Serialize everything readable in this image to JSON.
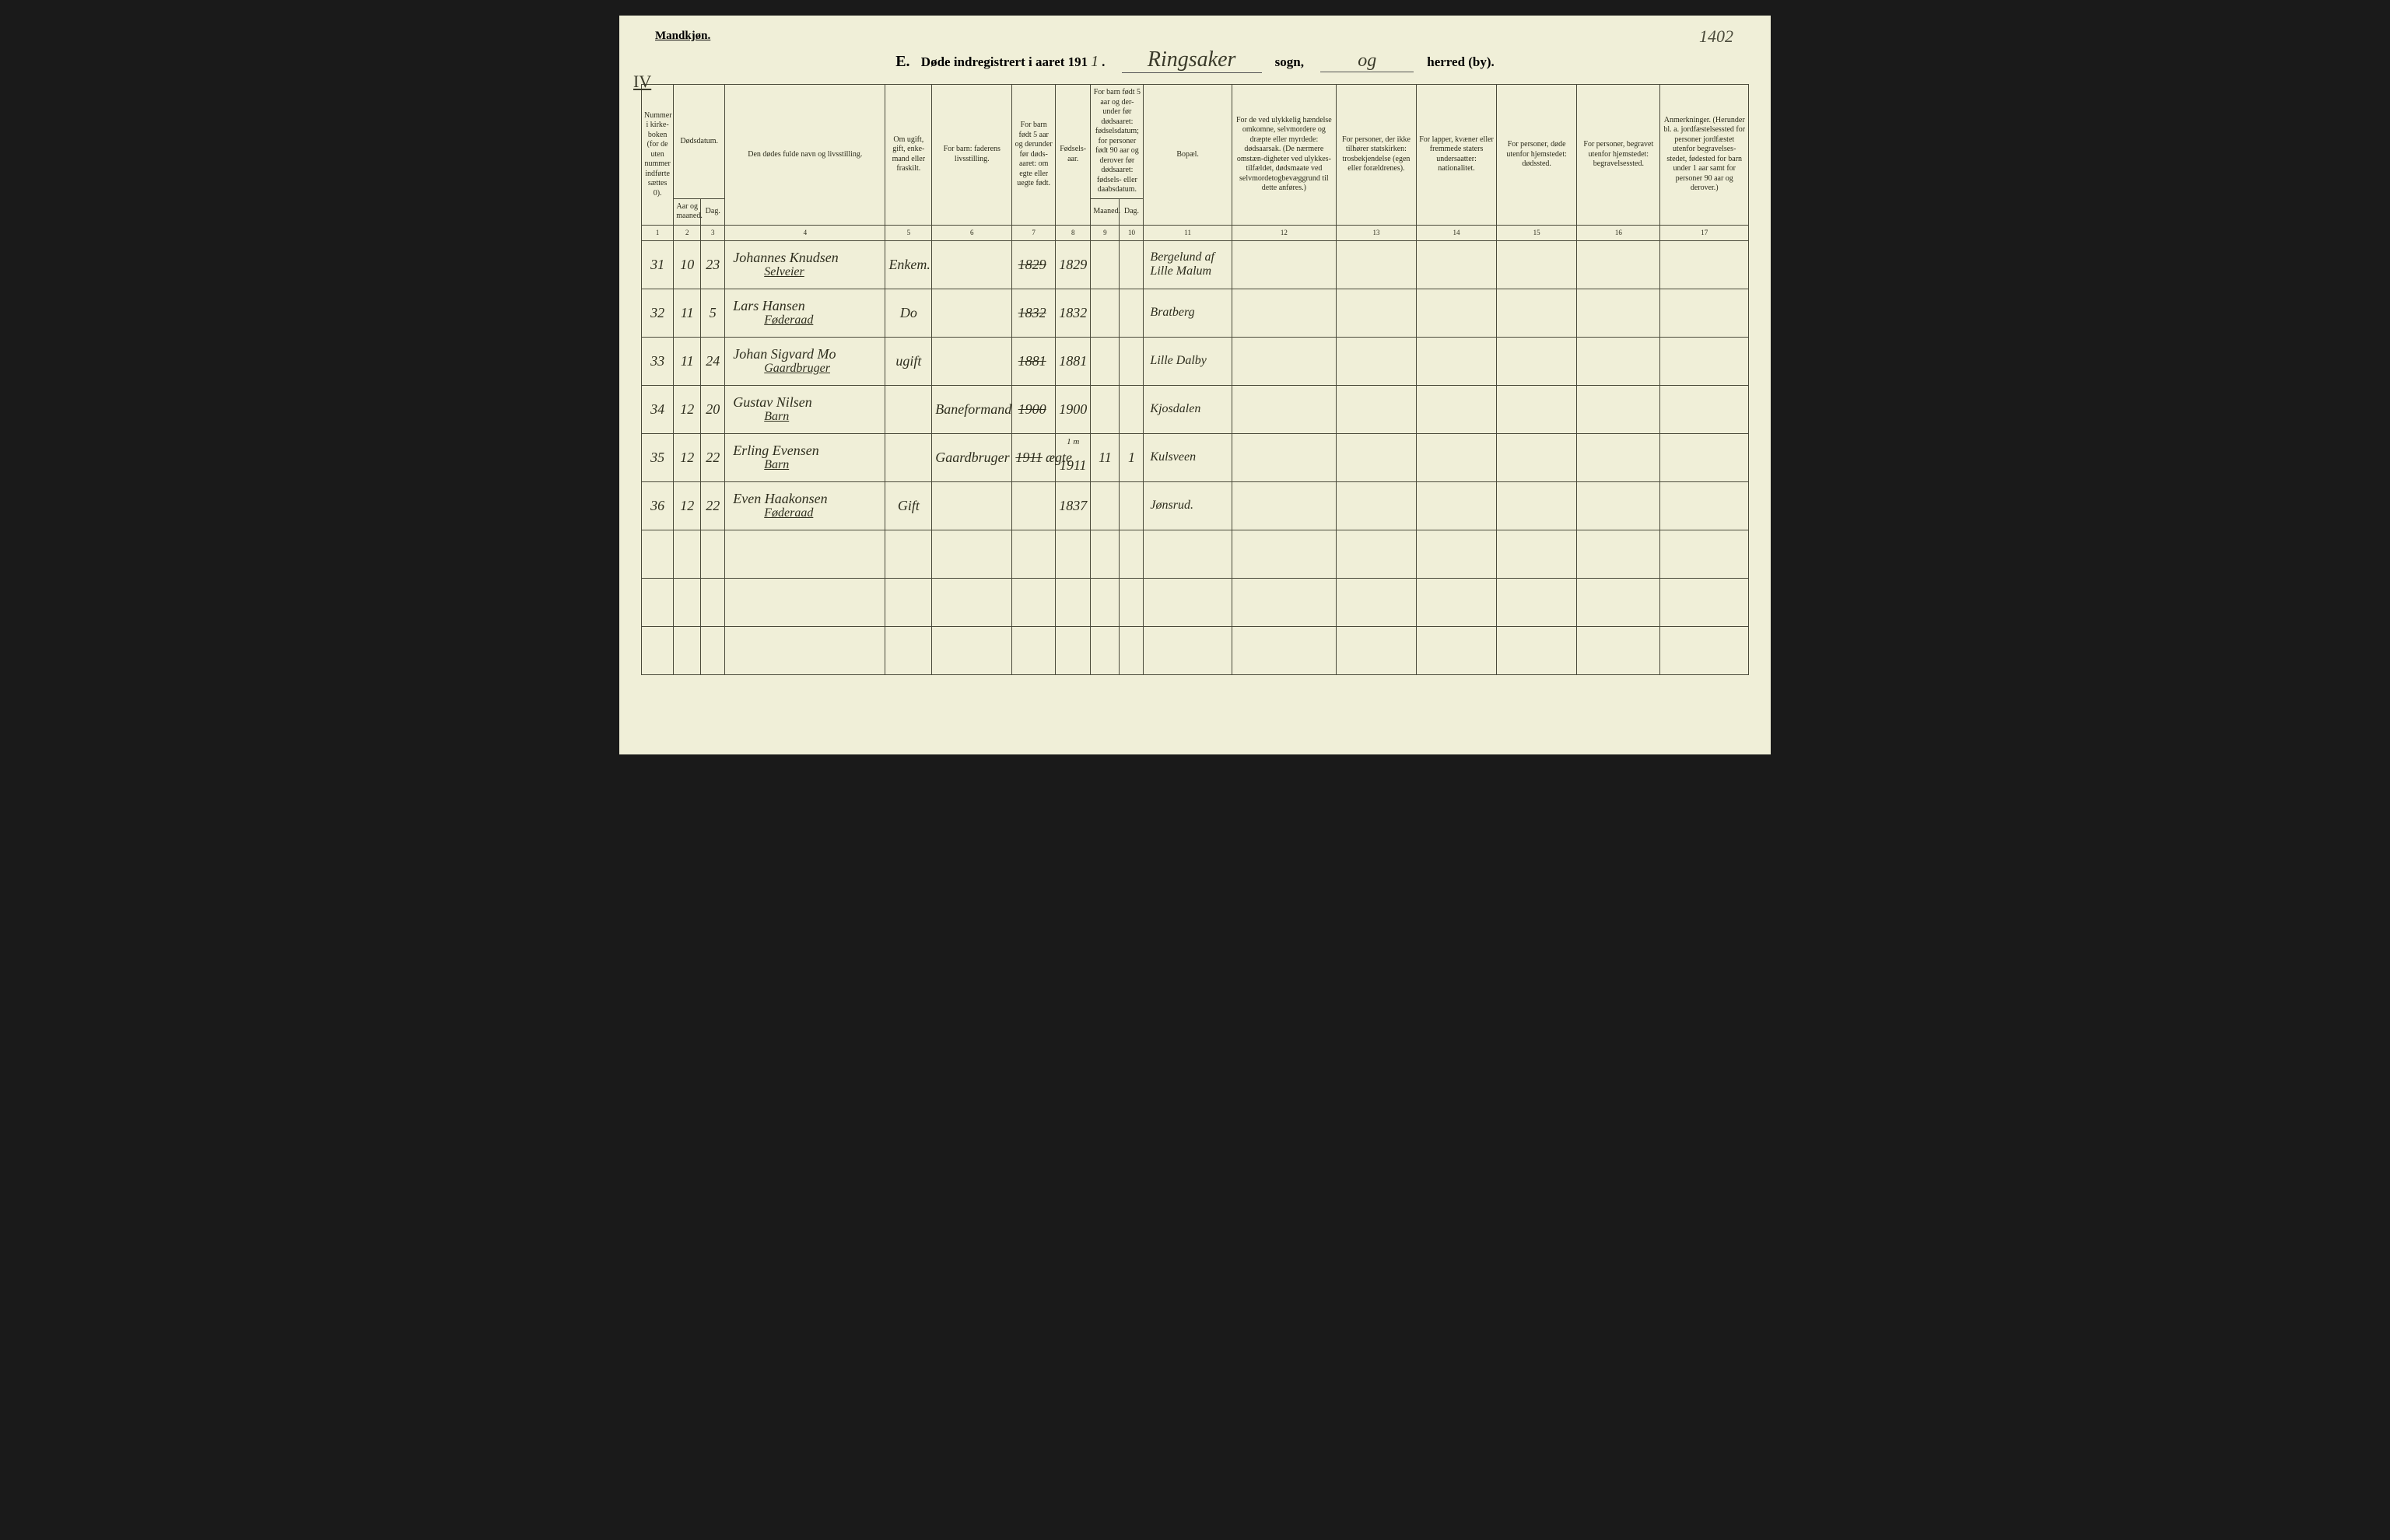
{
  "pageNumberHandwritten": "1402",
  "genderLabel": "Mandkjøn.",
  "romanNumeral": "IV",
  "titlePrefixLetter": "E.",
  "titleMain": "Døde indregistrert i aaret 19",
  "yearSuffix": "1",
  "yearHw": "1",
  "parishLabel": "sogn,",
  "parishHw": "Ringsaker",
  "districtLabel": "herred (by).",
  "districtHw": "og",
  "headers": {
    "c1": "Nummer i kirke-boken (for de uten nummer indførte sættes 0).",
    "c23top": "Dødsdatum.",
    "c2": "Aar og maaned.",
    "c3": "Dag.",
    "c4": "Den dødes fulde navn og livsstilling.",
    "c5": "Om ugift, gift, enke-mand eller fraskilt.",
    "c6": "For barn: faderens livsstilling.",
    "c7": "For barn født 5 aar og derunder før døds-aaret: om egte eller uegte født.",
    "c8": "Fødsels-aar.",
    "c910top": "For barn født 5 aar og der-under før dødsaaret: fødselsdatum; for personer født 90 aar og derover før dødsaaret: fødsels- eller daabsdatum.",
    "c9": "Maaned.",
    "c10": "Dag.",
    "c11": "Bopæl.",
    "c12": "For de ved ulykkelig hændelse omkomne, selvmordere og dræpte eller myrdede: dødsaarsak. (De nærmere omstæn-digheter ved ulykkes-tilfældet, dødsmaate ved selvmordetogbevæggrund til dette anføres.)",
    "c13": "For personer, der ikke tilhører statskirken: trosbekjendelse (egen eller forældrenes).",
    "c14": "For lapper, kvæner eller fremmede staters undersaatter: nationalitet.",
    "c15": "For personer, døde utenfor hjemstedet: dødssted.",
    "c16": "For personer, begravet utenfor hjemstedet: begravelsessted.",
    "c17": "Anmerkninger. (Herunder bl. a. jordfæstelsessted for personer jordfæstet utenfor begravelses-stedet, fødested for barn under 1 aar samt for personer 90 aar og derover.)"
  },
  "colNums": [
    "1",
    "2",
    "3",
    "4",
    "5",
    "6",
    "7",
    "8",
    "9",
    "10",
    "11",
    "12",
    "13",
    "14",
    "15",
    "16",
    "17"
  ],
  "rows": [
    {
      "num": "31",
      "month": "10",
      "day": "23",
      "nameLine1": "Johannes Knudsen",
      "nameLine2": "Selveier",
      "status": "Enkem.",
      "father": "",
      "c7strike": "1829",
      "c7": "",
      "birth": "1829",
      "m9": "",
      "d10": "",
      "bopal": "Bergelund af Lille Malum"
    },
    {
      "num": "32",
      "month": "11",
      "day": "5",
      "nameLine1": "Lars Hansen",
      "nameLine2": "Føderaad",
      "status": "Do",
      "father": "",
      "c7strike": "1832",
      "c7": "",
      "birth": "1832",
      "m9": "",
      "d10": "",
      "bopal": "Bratberg"
    },
    {
      "num": "33",
      "month": "11",
      "day": "24",
      "nameLine1": "Johan Sigvard Mo",
      "nameLine2": "Gaardbruger",
      "status": "ugift",
      "father": "",
      "c7strike": "1881",
      "c7": "",
      "birth": "1881",
      "m9": "",
      "d10": "",
      "bopal": "Lille Dalby"
    },
    {
      "num": "34",
      "month": "12",
      "day": "20",
      "nameLine1": "Gustav Nilsen",
      "nameLine2": "Barn",
      "status": "",
      "father": "Baneformand",
      "c7strike": "1900",
      "c7": "",
      "birth": "1900",
      "m9": "",
      "d10": "",
      "bopal": "Kjosdalen"
    },
    {
      "num": "35",
      "month": "12",
      "day": "22",
      "nameLine1": "Erling Evensen",
      "nameLine2": "Barn",
      "status": "",
      "father": "Gaardbruger",
      "c7strike": "1911",
      "c7": "ægte",
      "birth": "1911",
      "m9": "11",
      "d10": "1",
      "bopal": "Kulsveen",
      "note": "1 m"
    },
    {
      "num": "36",
      "month": "12",
      "day": "22",
      "nameLine1": "Even Haakonsen",
      "nameLine2": "Føderaad",
      "status": "Gift",
      "father": "",
      "c7strike": "",
      "c7": "",
      "birth": "1837",
      "m9": "",
      "d10": "",
      "bopal": "Jønsrud."
    }
  ],
  "emptyRows": 3,
  "colWidths": {
    "c1": "40px",
    "c2": "34px",
    "c3": "30px",
    "c4": "200px",
    "c5": "58px",
    "c6": "100px",
    "c7": "54px",
    "c8": "44px",
    "c9": "36px",
    "c10": "30px",
    "c11": "110px",
    "c12": "130px",
    "c13": "100px",
    "c14": "100px",
    "c15": "100px",
    "c16": "104px",
    "c17": "110px"
  }
}
